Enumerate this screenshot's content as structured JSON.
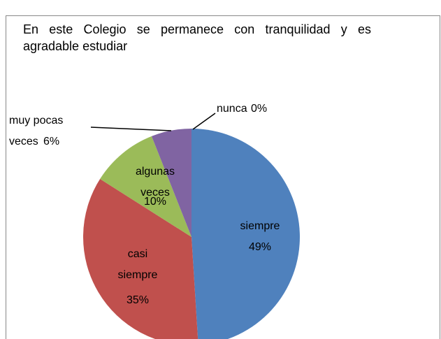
{
  "chart_data": {
    "type": "pie",
    "title": "En este Colegio se permanece con tranquilidad y es agradable estudiar",
    "categories": [
      "siempre",
      "casi siempre",
      "algunas veces",
      "muy pocas veces",
      "nunca"
    ],
    "values": [
      49,
      35,
      10,
      6,
      0
    ],
    "value_labels": [
      "49%",
      "35%",
      "10%",
      "6%",
      "0%"
    ],
    "colors": [
      "#4f81bd",
      "#c0504d",
      "#9bbb59",
      "#8064a2",
      "#4bacc6"
    ]
  }
}
